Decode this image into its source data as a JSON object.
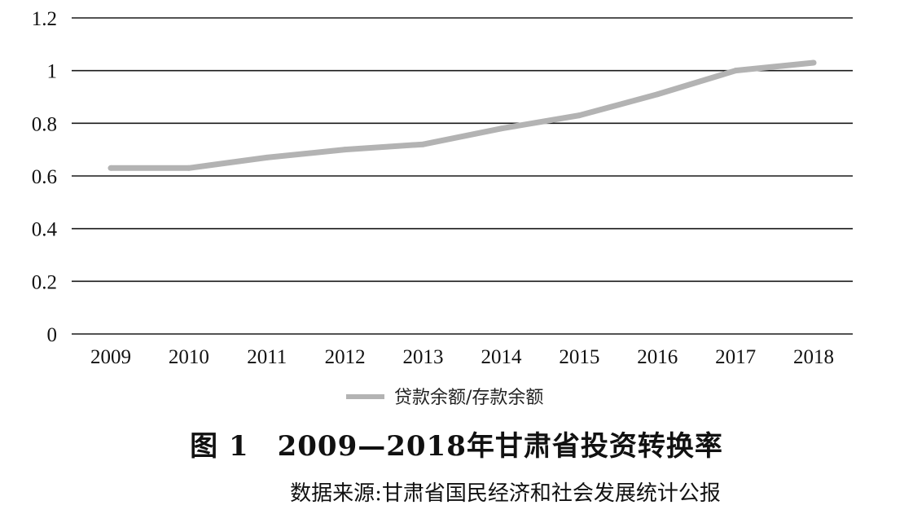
{
  "chart_data": {
    "type": "line",
    "categories": [
      "2009",
      "2010",
      "2011",
      "2012",
      "2013",
      "2014",
      "2015",
      "2016",
      "2017",
      "2018"
    ],
    "series": [
      {
        "name": "贷款余额/存款余额",
        "values": [
          0.63,
          0.63,
          0.67,
          0.7,
          0.72,
          0.78,
          0.83,
          0.91,
          1.0,
          1.03
        ],
        "color": "#b3b3b3"
      }
    ],
    "yticks": [
      "0",
      "0.2",
      "0.4",
      "0.6",
      "0.8",
      "1",
      "1.2"
    ],
    "ylim": [
      0,
      1.2
    ],
    "grid": true,
    "legend_position": "bottom",
    "gridline_color": "#1a1a1a"
  },
  "caption": {
    "title": "图 1　2009—2018年甘肃省投资转换率",
    "source": "数据来源:甘肃省国民经济和社会发展统计公报"
  }
}
